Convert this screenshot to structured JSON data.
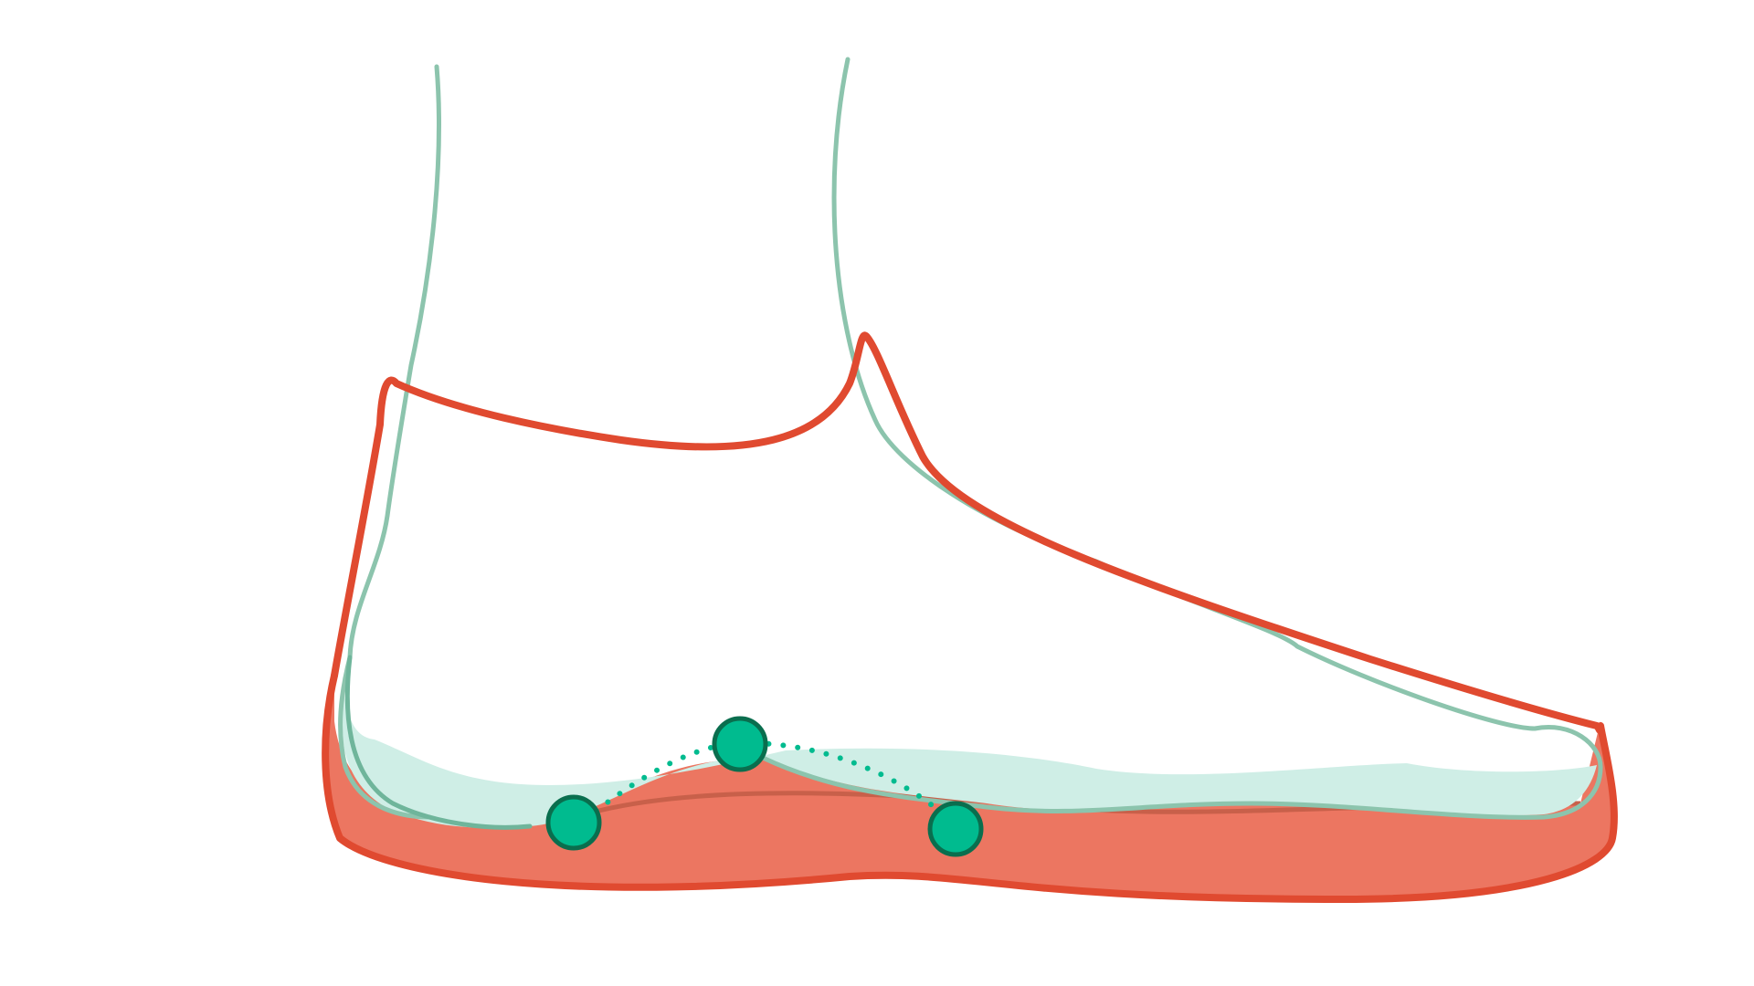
{
  "diagram": {
    "subject": "foot-in-shoe-side-view",
    "colors": {
      "background": "#ffffff",
      "foot_outline": "#8cc4ad",
      "foot_sole_fill": "#cfeee6",
      "shoe_outline": "#e04a30",
      "shoe_sole_fill": "#ec7661",
      "shoe_sole_inner_line": "#c8604a",
      "arch_point_fill": "#00bb8f",
      "arch_point_stroke": "#0a6e4e",
      "arch_curve": "#00bb8f"
    },
    "arch_points": [
      {
        "id": "heel-contact-point"
      },
      {
        "id": "arch-peak-point"
      },
      {
        "id": "forefoot-contact-point"
      }
    ]
  }
}
